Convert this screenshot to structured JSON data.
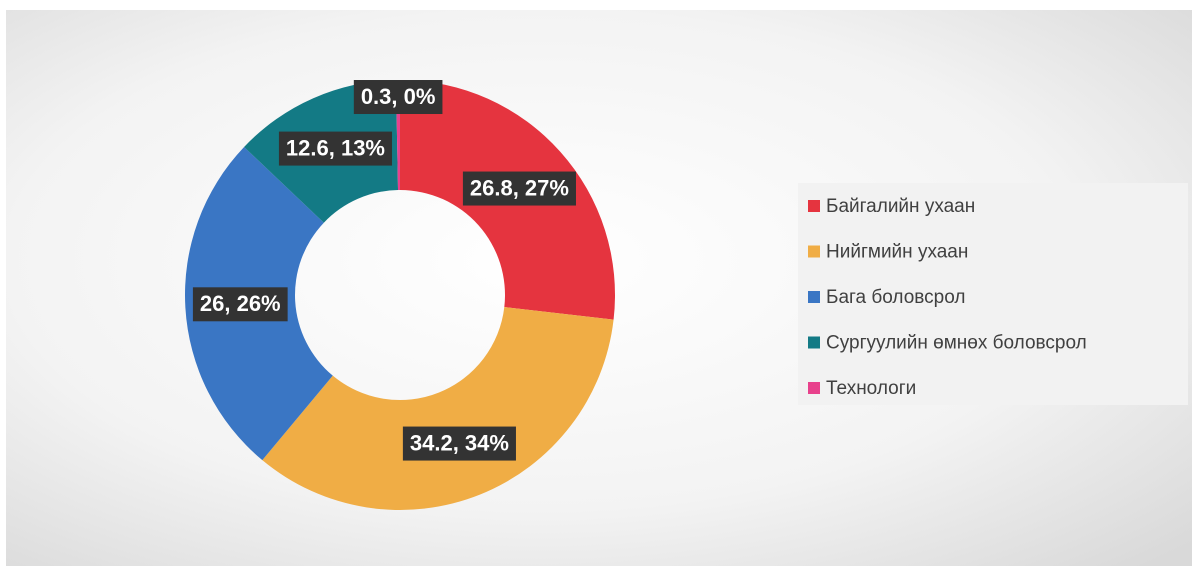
{
  "chart_data": {
    "type": "donut",
    "categories": [
      "Байгалийн  ухаан",
      "Нийгмийн  ухаан",
      "Бага боловсрол",
      "Сургуулийн өмнөх боловсрол",
      "Технологи"
    ],
    "values": [
      26.8,
      34.2,
      26,
      12.6,
      0.3
    ],
    "value_labels": [
      "26.8, 27%",
      "34.2, 34%",
      "26, 26%",
      "12.6, 13%",
      "0.3, 0%"
    ],
    "colors": [
      "#e5343f",
      "#f0ad45",
      "#3a76c4",
      "#137a85",
      "#e8418c"
    ],
    "legend": "right"
  }
}
